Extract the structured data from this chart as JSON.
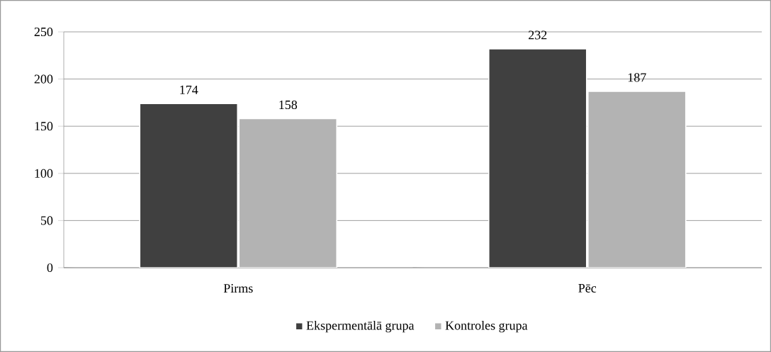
{
  "chart_data": {
    "type": "bar",
    "categories": [
      "Pirms",
      "Pēc"
    ],
    "series": [
      {
        "name": "Ekspermentālā grupa",
        "color": "#404040",
        "values": [
          174,
          232
        ]
      },
      {
        "name": "Kontroles grupa",
        "color": "#b3b3b3",
        "values": [
          158,
          187
        ]
      }
    ],
    "ylim": [
      0,
      250
    ],
    "yticks": [
      0,
      50,
      100,
      150,
      200,
      250
    ],
    "grid": "y",
    "legend": "bottom",
    "data_labels": true
  }
}
